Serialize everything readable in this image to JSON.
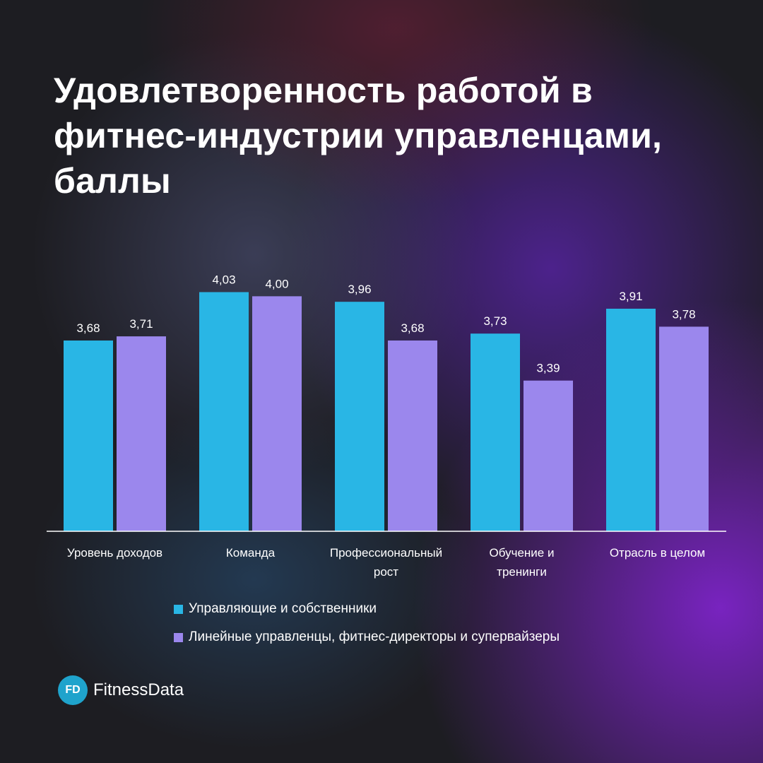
{
  "title": "Удовлетворенность работой в фитнес-индустрии управленцами, баллы",
  "chart_data": {
    "type": "bar",
    "title": "Удовлетворенность работой в фитнес-индустрии управленцами, баллы",
    "categories": [
      [
        "Уровень доходов"
      ],
      [
        "Команда"
      ],
      [
        "Профессиональный",
        "рост"
      ],
      [
        "Обучение и",
        "тренинги"
      ],
      [
        "Отрасль в целом"
      ]
    ],
    "series": [
      {
        "name": "Управляющие и собственники",
        "color": "#29b6e5",
        "values": [
          3.68,
          4.03,
          3.96,
          3.73,
          3.91
        ],
        "labels": [
          "3,68",
          "4,03",
          "3,96",
          "3,73",
          "3,91"
        ]
      },
      {
        "name": "Линейные управленцы, фитнес-директоры и супервайзеры",
        "color": "#9b87ed",
        "values": [
          3.71,
          4.0,
          3.68,
          3.39,
          3.78
        ],
        "labels": [
          "3,71",
          "4,00",
          "3,68",
          "3,39",
          "3,78"
        ]
      }
    ],
    "ylim": [
      2.3,
      4.15
    ],
    "grid": false,
    "legend_position": "bottom"
  },
  "brand": {
    "badge": "FD",
    "name": "FitnessData"
  }
}
